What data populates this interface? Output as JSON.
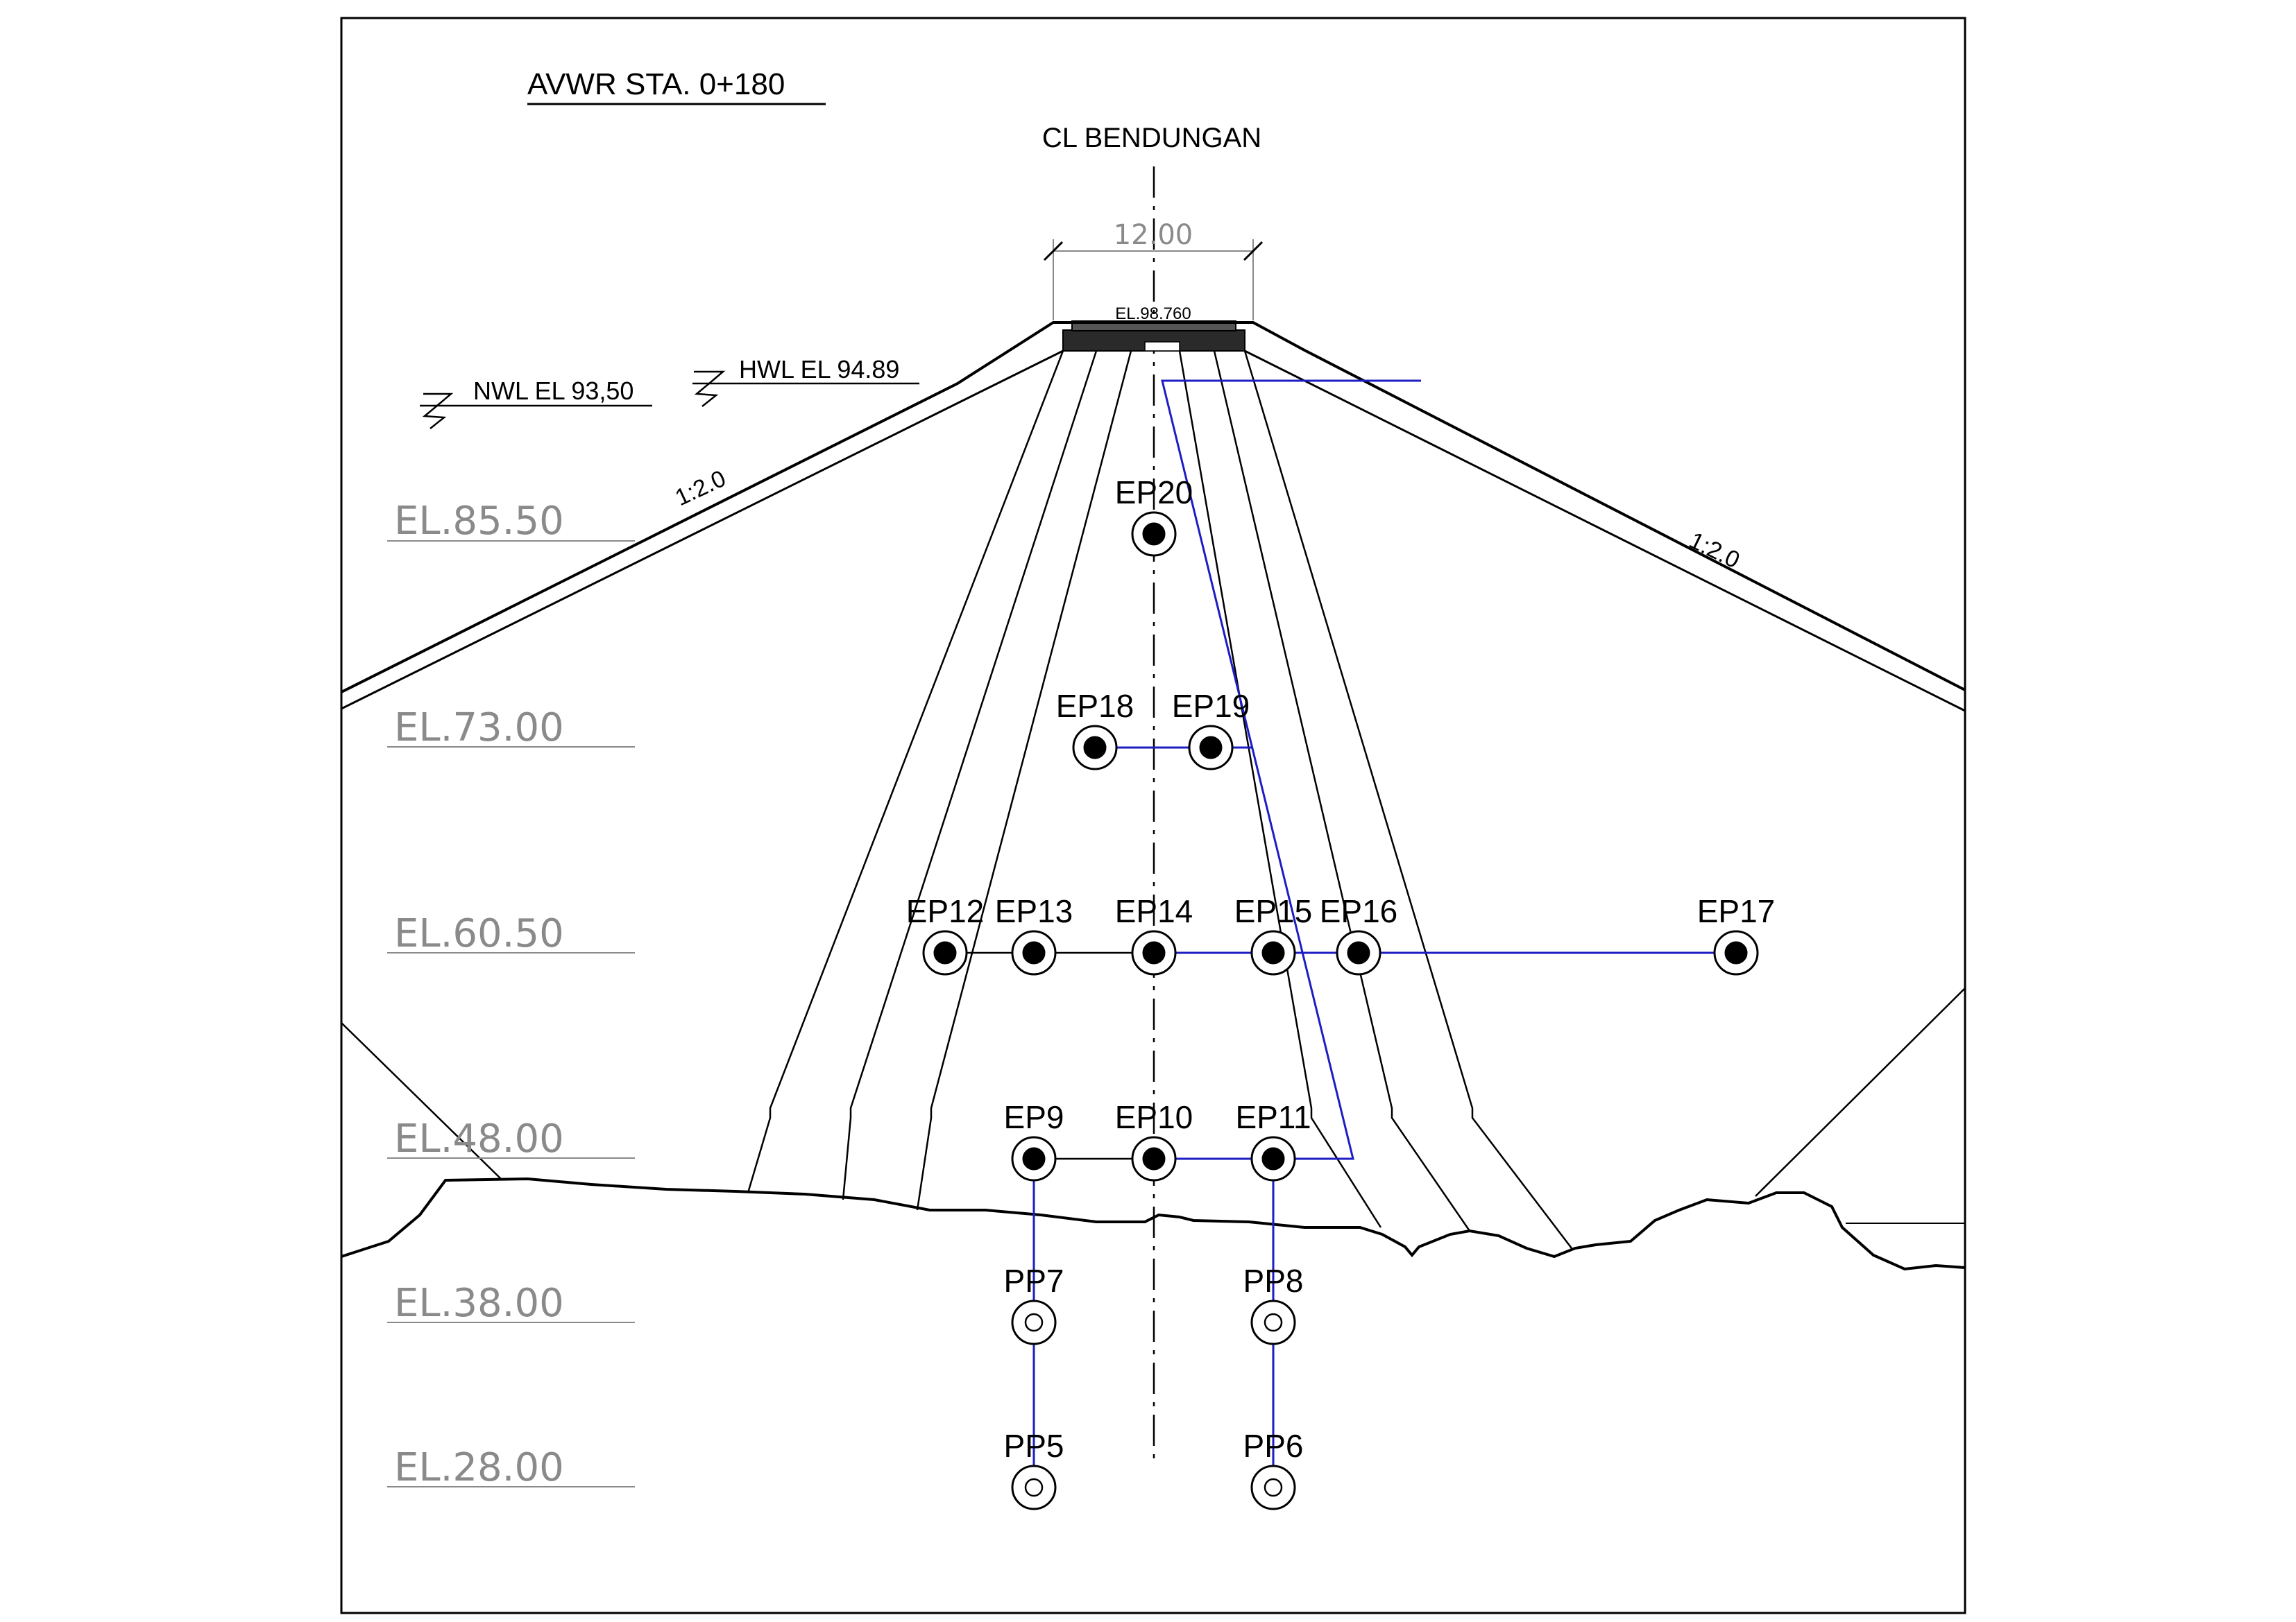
{
  "title": "AVWR STA. 0+180",
  "centerline_label": "CL BENDUNGAN",
  "crest": {
    "width_dim": "12.00",
    "elevation_label": "EL.98.760"
  },
  "water_levels": {
    "nwl": "NWL EL 93,50",
    "hwl": "HWL EL 94.89"
  },
  "slopes": {
    "upstream": "1:2.0",
    "downstream": "1:2.0"
  },
  "elevation_labels": [
    "EL.85.50",
    "EL.73.00",
    "EL.60.50",
    "EL.48.00",
    "EL.38.00",
    "EL.28.00"
  ],
  "instruments": {
    "electric_piezometers": [
      "EP20",
      "EP18",
      "EP19",
      "EP12",
      "EP13",
      "EP14",
      "EP15",
      "EP16",
      "EP17",
      "EP9",
      "EP10",
      "EP11"
    ],
    "pneumatic_piezometers": [
      "PP7",
      "PP8",
      "PP5",
      "PP6"
    ]
  },
  "colors": {
    "linework": "#000000",
    "cable_route": "#1d1dc4",
    "elevation_text": "#8a8a8a"
  }
}
